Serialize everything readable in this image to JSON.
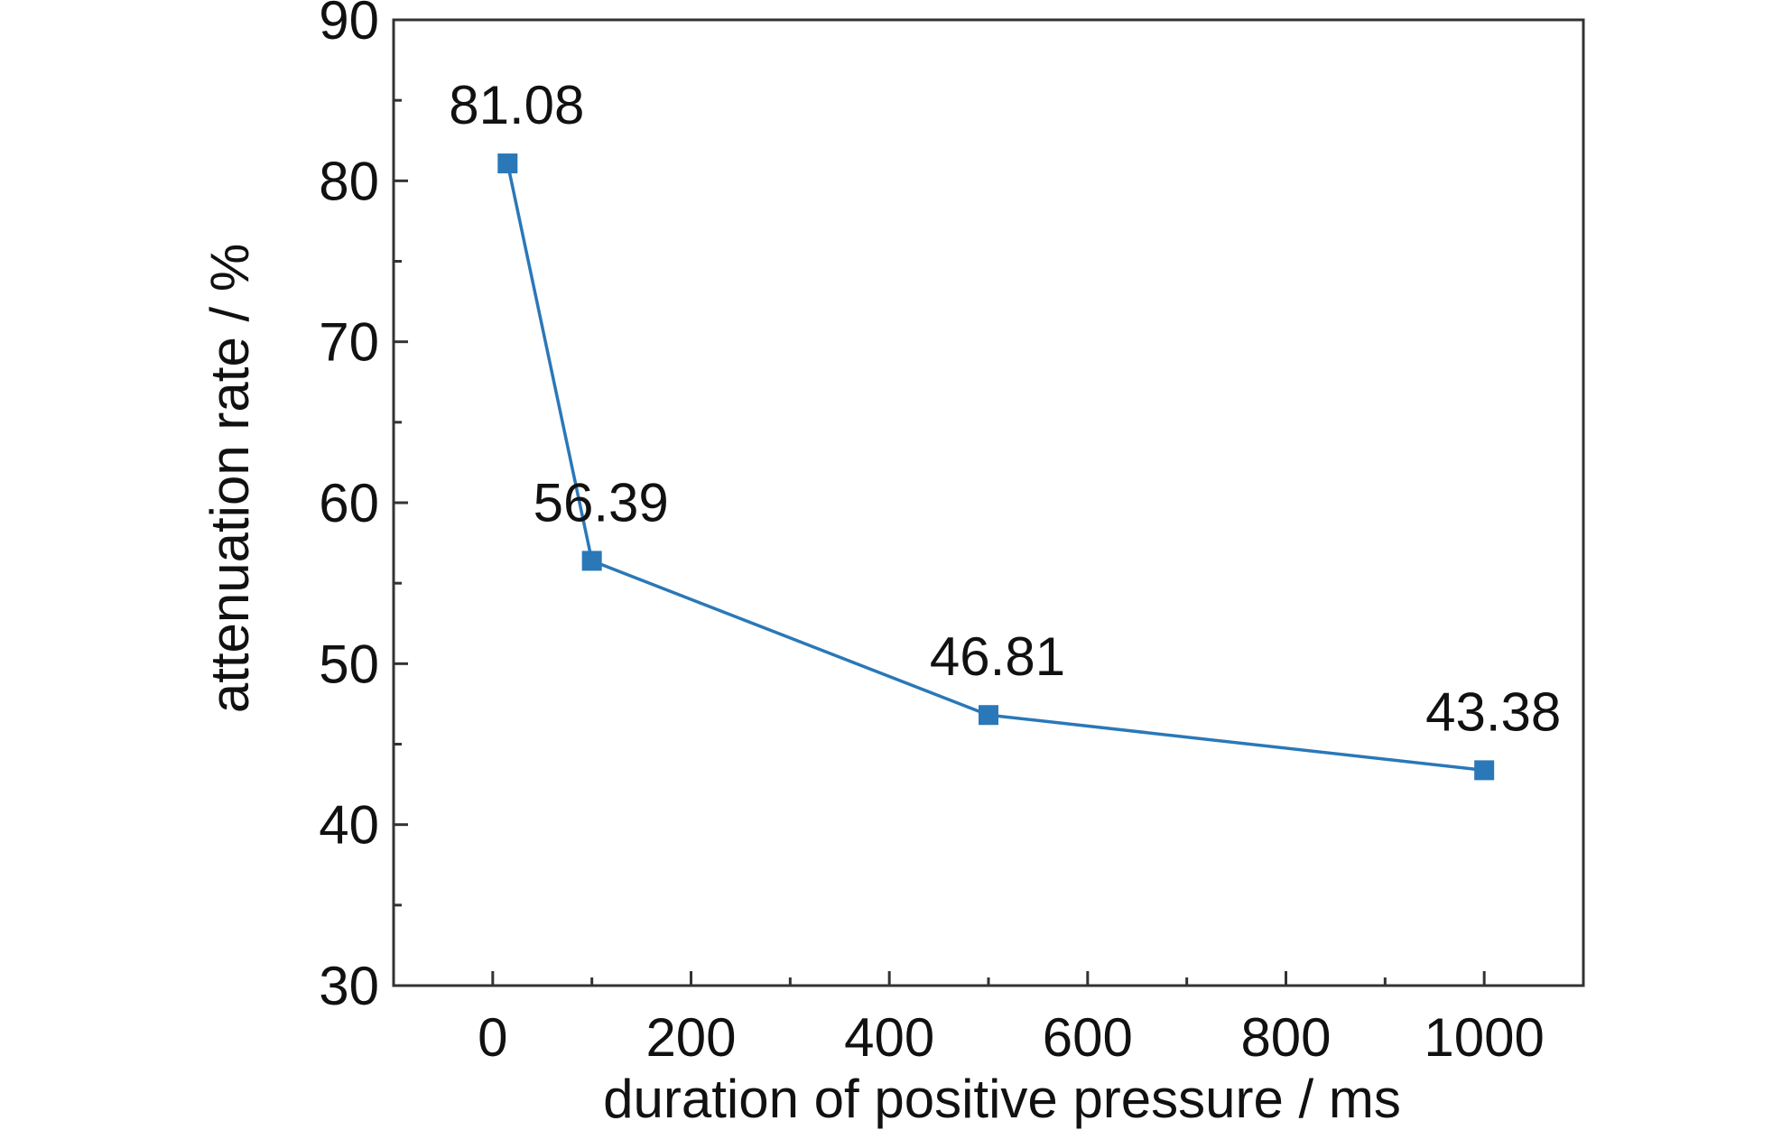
{
  "chart_data": {
    "type": "line",
    "title": "",
    "xlabel": "duration of positive pressure / ms",
    "ylabel": "attenuation rate / %",
    "xlim": [
      -100,
      1100
    ],
    "ylim": [
      30,
      90
    ],
    "x_ticks": [
      0,
      200,
      400,
      600,
      800,
      1000
    ],
    "x_tick_labels": [
      "0",
      "200",
      "400",
      "600",
      "800",
      "1000"
    ],
    "y_ticks": [
      30,
      40,
      50,
      60,
      70,
      80,
      90
    ],
    "y_tick_labels": [
      "30",
      "40",
      "50",
      "60",
      "70",
      "80",
      "90"
    ],
    "grid": false,
    "legend": "none",
    "series": [
      {
        "color": "#2a78b8",
        "marker": "square",
        "x": [
          15,
          100,
          500,
          1000
        ],
        "y": [
          81.08,
          56.39,
          46.81,
          43.38
        ],
        "data_labels": [
          "81.08",
          "56.39",
          "46.81",
          "43.38"
        ]
      }
    ]
  }
}
